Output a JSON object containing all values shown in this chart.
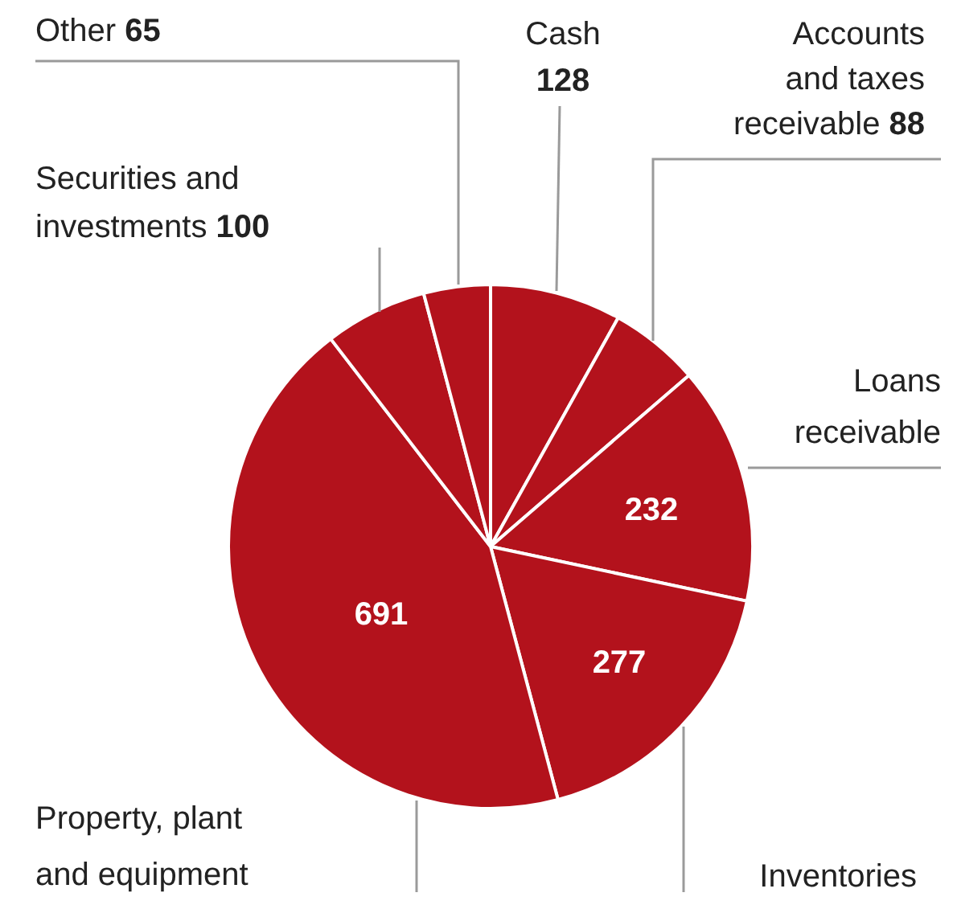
{
  "chart_data": {
    "type": "pie",
    "categories": [
      "Cash",
      "Accounts and taxes receivable",
      "Loans receivable",
      "Inventories",
      "Property, plant and equipment",
      "Securities and investments",
      "Other"
    ],
    "values": [
      128,
      88,
      232,
      277,
      691,
      100,
      65
    ],
    "colors": [
      "#b3121c",
      "#b3121c",
      "#b3121c",
      "#b3121c",
      "#b3121c",
      "#b3121c",
      "#b3121c"
    ],
    "data_labels": true
  }
}
